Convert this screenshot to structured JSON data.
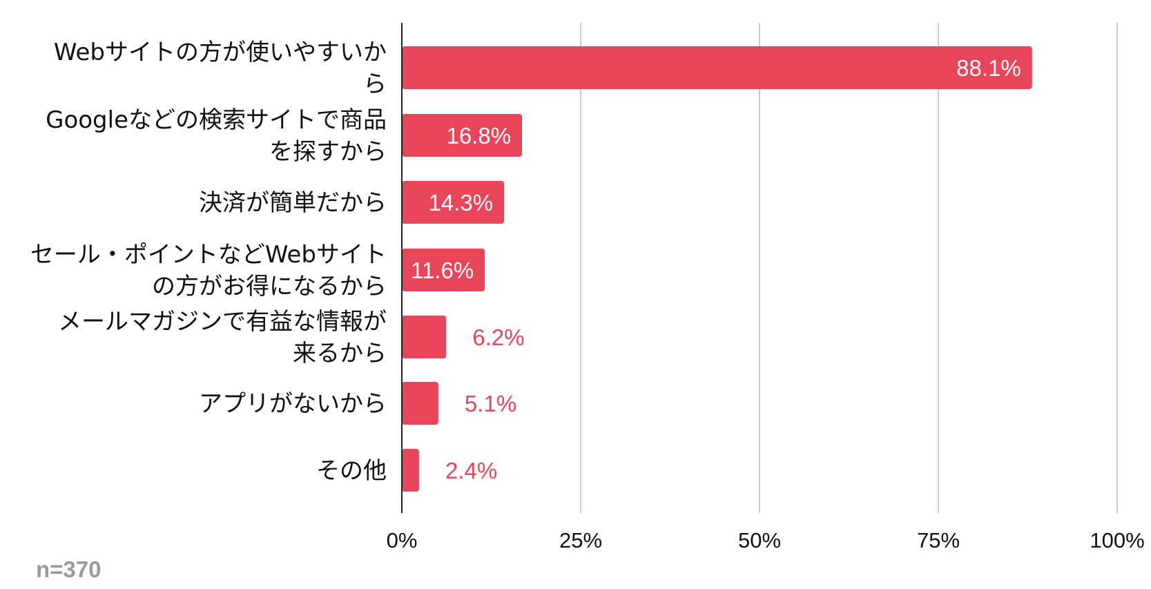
{
  "colors": {
    "bar": "#e8445a",
    "inside_label": "#ffffff",
    "outside_label": "#e8445a",
    "grid": "#cccccc",
    "axis": "#222222",
    "note": "#9a9a9a"
  },
  "note": "n=370",
  "chart_data": {
    "type": "bar",
    "orientation": "horizontal",
    "categories": [
      [
        "Webサイトの方が使いやすいか",
        "ら"
      ],
      [
        "Googleなどの検索サイトで商品",
        "を探すから"
      ],
      [
        "決済が簡単だから"
      ],
      [
        "セール・ポイントなどWebサイト",
        "の方がお得になるから"
      ],
      [
        "メールマガジンで有益な情報が",
        "来るから"
      ],
      [
        "アプリがないから"
      ],
      [
        "その他"
      ]
    ],
    "values": [
      88.1,
      16.8,
      14.3,
      11.6,
      6.2,
      5.1,
      2.4
    ],
    "value_labels": [
      "88.1%",
      "16.8%",
      "14.3%",
      "11.6%",
      "6.2%",
      "5.1%",
      "2.4%"
    ],
    "xlim": [
      0,
      100
    ],
    "xticks": [
      0,
      25,
      50,
      75,
      100
    ],
    "xtick_labels": [
      "0%",
      "25%",
      "50%",
      "75%",
      "100%"
    ],
    "grid": true,
    "legend": "none",
    "title": "",
    "xlabel": "",
    "ylabel": ""
  }
}
